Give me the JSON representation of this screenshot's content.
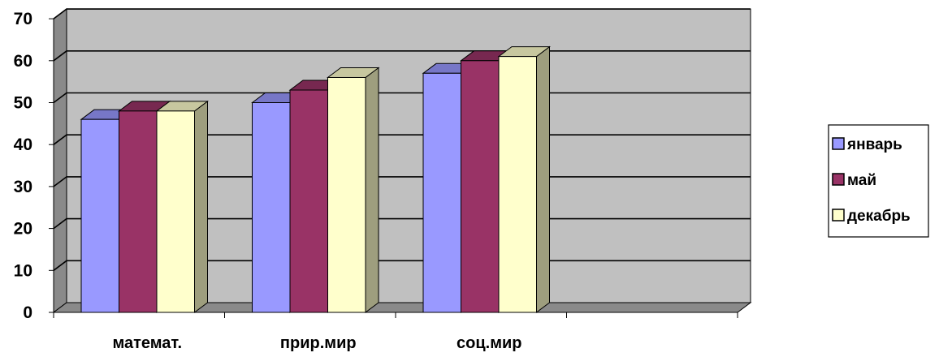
{
  "chart_data": {
    "type": "bar",
    "title": "",
    "xlabel": "",
    "ylabel": "",
    "categories": [
      "математ.",
      "прир.мир",
      "соц.мир",
      ""
    ],
    "series": [
      {
        "name": "январь",
        "values": [
          46,
          50,
          57,
          null
        ],
        "color": "#9999ff"
      },
      {
        "name": "май",
        "values": [
          48,
          53,
          60,
          null
        ],
        "color": "#993366"
      },
      {
        "name": "декабрь",
        "values": [
          48,
          56,
          61,
          null
        ],
        "color": "#ffffcc"
      }
    ],
    "ylim": [
      0,
      70
    ],
    "yticks": [
      0,
      10,
      20,
      30,
      40,
      50,
      60,
      70
    ],
    "grid": true,
    "three_d": true,
    "plot_background": "#c0c0c0",
    "legend_position": "right"
  }
}
